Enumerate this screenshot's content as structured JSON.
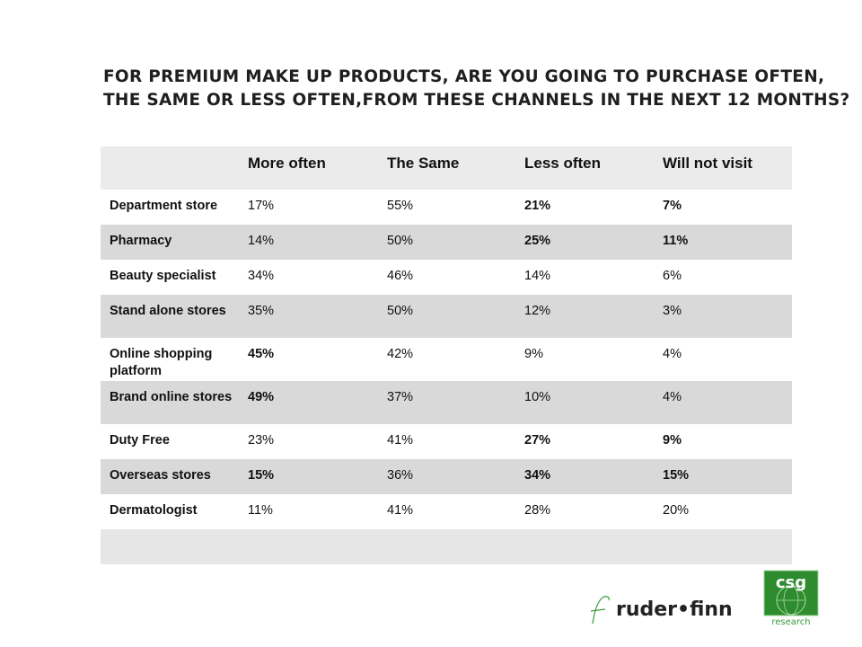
{
  "title": {
    "line1": "FOR PREMIUM MAKE UP PRODUCTS, ARE YOU GOING TO PURCHASE OFTEN,",
    "line2": "THE SAME OR LESS OFTEN,FROM THESE CHANNELS IN THE NEXT 12 MONTHS?"
  },
  "table": {
    "headers": [
      "",
      "More often",
      "The Same",
      "Less often",
      "Will not visit"
    ],
    "rows": [
      {
        "label": "Department store",
        "cells": [
          "17%",
          "55%",
          "21%",
          "7%"
        ],
        "bold": [
          false,
          false,
          true,
          true
        ]
      },
      {
        "label": "Pharmacy",
        "cells": [
          "14%",
          "50%",
          "25%",
          "11%"
        ],
        "bold": [
          false,
          false,
          true,
          true
        ]
      },
      {
        "label": "Beauty specialist",
        "cells": [
          "34%",
          "46%",
          "14%",
          "6%"
        ],
        "bold": [
          false,
          false,
          false,
          false
        ]
      },
      {
        "label": "Stand alone stores",
        "cells": [
          "35%",
          "50%",
          "12%",
          "3%"
        ],
        "bold": [
          false,
          false,
          false,
          false
        ]
      },
      {
        "label": "Online shopping platform",
        "cells": [
          "45%",
          "42%",
          "9%",
          "4%"
        ],
        "bold": [
          true,
          false,
          false,
          false
        ]
      },
      {
        "label": "Brand online stores",
        "cells": [
          "49%",
          "37%",
          "10%",
          "4%"
        ],
        "bold": [
          true,
          false,
          false,
          false
        ]
      },
      {
        "label": "Duty Free",
        "cells": [
          "23%",
          "41%",
          "27%",
          "9%"
        ],
        "bold": [
          false,
          false,
          true,
          true
        ]
      },
      {
        "label": "Overseas stores",
        "cells": [
          "15%",
          "36%",
          "34%",
          "15%"
        ],
        "bold": [
          true,
          false,
          true,
          true
        ]
      },
      {
        "label": "Dermatologist",
        "cells": [
          "11%",
          "41%",
          "28%",
          "20%"
        ],
        "bold": [
          false,
          false,
          false,
          false
        ]
      }
    ]
  },
  "logos": {
    "ruder_finn": "ruder•finn",
    "csg_text": "csg",
    "csg_sub": "research"
  },
  "colors": {
    "header_bg": "#ebebeb",
    "shade_bg": "#d9d9d9",
    "brand_green": "#2e8b2e"
  }
}
